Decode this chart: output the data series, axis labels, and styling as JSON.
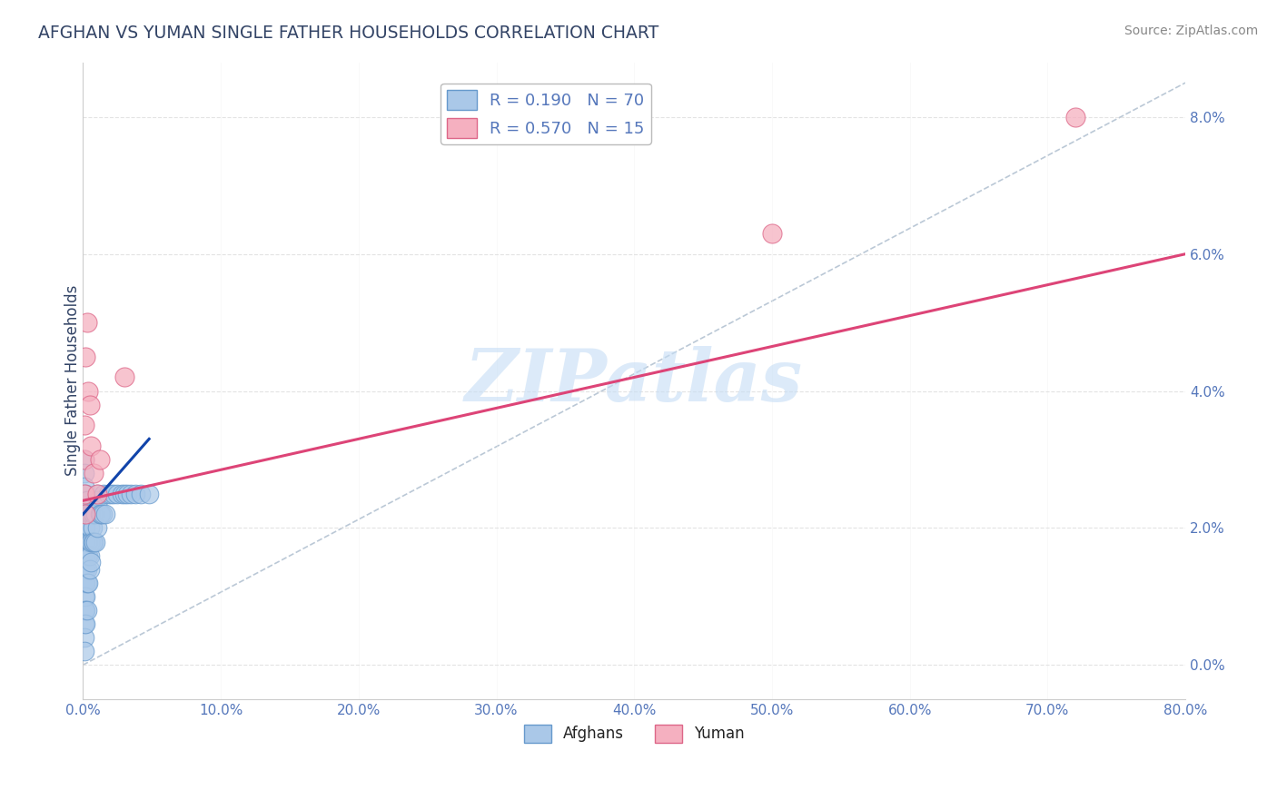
{
  "title": "AFGHAN VS YUMAN SINGLE FATHER HOUSEHOLDS CORRELATION CHART",
  "source": "Source: ZipAtlas.com",
  "ylabel": "Single Father Households",
  "xlim": [
    0.0,
    0.8
  ],
  "ylim": [
    -0.005,
    0.088
  ],
  "xticks": [
    0.0,
    0.1,
    0.2,
    0.3,
    0.4,
    0.5,
    0.6,
    0.7,
    0.8
  ],
  "yticks": [
    0.0,
    0.02,
    0.04,
    0.06,
    0.08
  ],
  "legend_blue_r": "R = 0.190",
  "legend_blue_n": "N = 70",
  "legend_pink_r": "R = 0.570",
  "legend_pink_n": "N = 15",
  "blue_color": "#aac8e8",
  "blue_edge_color": "#6699cc",
  "blue_line_color": "#1144aa",
  "pink_color": "#f5b0c0",
  "pink_edge_color": "#dd6688",
  "pink_line_color": "#dd4477",
  "watermark_text": "ZIPatlas",
  "watermark_color": "#c5ddf5",
  "grid_color": "#dddddd",
  "dash_line_color": "#aabbcc",
  "background_color": "#ffffff",
  "tick_color": "#5577bb",
  "title_color": "#334466",
  "source_color": "#888888",
  "afghans_x": [
    0.001,
    0.001,
    0.001,
    0.001,
    0.001,
    0.001,
    0.001,
    0.001,
    0.001,
    0.001,
    0.001,
    0.001,
    0.001,
    0.001,
    0.001,
    0.002,
    0.002,
    0.002,
    0.002,
    0.002,
    0.002,
    0.002,
    0.002,
    0.002,
    0.002,
    0.003,
    0.003,
    0.003,
    0.003,
    0.003,
    0.003,
    0.003,
    0.004,
    0.004,
    0.004,
    0.004,
    0.005,
    0.005,
    0.005,
    0.005,
    0.005,
    0.006,
    0.006,
    0.006,
    0.007,
    0.007,
    0.007,
    0.008,
    0.008,
    0.009,
    0.009,
    0.01,
    0.01,
    0.011,
    0.012,
    0.013,
    0.014,
    0.015,
    0.016,
    0.018,
    0.02,
    0.022,
    0.025,
    0.028,
    0.03,
    0.032,
    0.035,
    0.038,
    0.042,
    0.048
  ],
  "afghans_y": [
    0.03,
    0.028,
    0.026,
    0.024,
    0.022,
    0.02,
    0.018,
    0.016,
    0.014,
    0.012,
    0.01,
    0.008,
    0.006,
    0.004,
    0.002,
    0.025,
    0.022,
    0.02,
    0.018,
    0.016,
    0.014,
    0.012,
    0.01,
    0.008,
    0.006,
    0.024,
    0.022,
    0.018,
    0.016,
    0.014,
    0.012,
    0.008,
    0.022,
    0.018,
    0.016,
    0.012,
    0.022,
    0.02,
    0.018,
    0.016,
    0.014,
    0.022,
    0.018,
    0.015,
    0.022,
    0.02,
    0.018,
    0.022,
    0.018,
    0.022,
    0.018,
    0.025,
    0.02,
    0.024,
    0.022,
    0.022,
    0.022,
    0.025,
    0.022,
    0.025,
    0.025,
    0.025,
    0.025,
    0.025,
    0.025,
    0.025,
    0.025,
    0.025,
    0.025,
    0.025
  ],
  "yuman_x": [
    0.001,
    0.001,
    0.001,
    0.002,
    0.002,
    0.003,
    0.004,
    0.005,
    0.006,
    0.008,
    0.01,
    0.012,
    0.03,
    0.5,
    0.72
  ],
  "yuman_y": [
    0.035,
    0.03,
    0.025,
    0.045,
    0.022,
    0.05,
    0.04,
    0.038,
    0.032,
    0.028,
    0.025,
    0.03,
    0.042,
    0.063,
    0.08
  ],
  "blue_line_x0": 0.0,
  "blue_line_x1": 0.048,
  "blue_line_y0": 0.022,
  "blue_line_y1": 0.033,
  "pink_line_x0": 0.0,
  "pink_line_x1": 0.8,
  "pink_line_y0": 0.024,
  "pink_line_y1": 0.06,
  "dash_line_x0": 0.0,
  "dash_line_x1": 0.8,
  "dash_line_y0": 0.0,
  "dash_line_y1": 0.085
}
